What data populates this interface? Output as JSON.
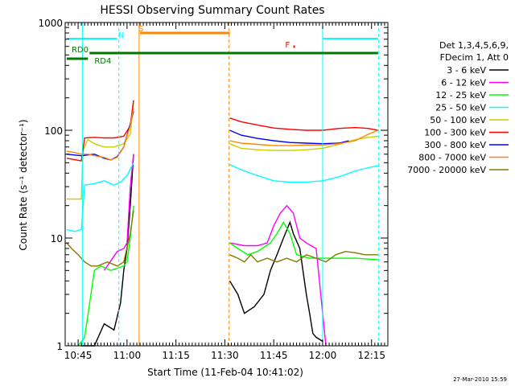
{
  "chart_data": {
    "type": "line",
    "title": "HESSI Observing Summary Count Rates",
    "xlabel": "Start Time (11-Feb-04 10:41:02)",
    "ylabel": "Count Rate (s⁻¹ detector⁻¹)",
    "x_range_min": [
      41.03,
      140.0
    ],
    "ylim": [
      1,
      1000
    ],
    "yscale": "log",
    "x_ticks": [
      {
        "v": 45,
        "label": "10:45"
      },
      {
        "v": 60,
        "label": "11:00"
      },
      {
        "v": 75,
        "label": "11:15"
      },
      {
        "v": 90,
        "label": "11:30"
      },
      {
        "v": 105,
        "label": "11:45"
      },
      {
        "v": 120,
        "label": "12:00"
      },
      {
        "v": 135,
        "label": "12:15"
      }
    ],
    "y_ticks": [
      {
        "v": 1,
        "label": "1"
      },
      {
        "v": 10,
        "label": "10"
      },
      {
        "v": 100,
        "label": "100"
      },
      {
        "v": 1000,
        "label": "1000"
      }
    ],
    "legend_header": [
      "Det 1,3,4,5,6,9,",
      "FDecim 1, Att 0"
    ],
    "legend_position": "right",
    "series": [
      {
        "name": "3 - 6 keV",
        "color": "#000000",
        "segments": [
          [
            [
              46,
              1.0
            ],
            [
              50,
              1.0
            ],
            [
              53,
              1.6
            ],
            [
              56,
              1.4
            ],
            [
              58,
              2.5
            ],
            [
              59,
              5
            ],
            [
              60,
              8
            ],
            [
              61,
              20
            ],
            [
              62,
              60
            ]
          ],
          [
            [
              91.5,
              4
            ],
            [
              94,
              3
            ],
            [
              96,
              2
            ],
            [
              99,
              2.3
            ],
            [
              102,
              3
            ],
            [
              104,
              5
            ],
            [
              106,
              7
            ],
            [
              108,
              10
            ],
            [
              110,
              14
            ],
            [
              111,
              11
            ],
            [
              113,
              8
            ],
            [
              115,
              3
            ],
            [
              116,
              2
            ],
            [
              117,
              1.3
            ],
            [
              118,
              1.2
            ],
            [
              120,
              1.1
            ]
          ]
        ]
      },
      {
        "name": "6 - 12 keV",
        "color": "#ff00ff",
        "segments": [
          [
            [
              53,
              5
            ],
            [
              57,
              7.5
            ],
            [
              59,
              8
            ],
            [
              60,
              9
            ],
            [
              61,
              30
            ],
            [
              62,
              60
            ]
          ],
          [
            [
              91.5,
              9
            ],
            [
              96,
              8.5
            ],
            [
              100,
              8.5
            ],
            [
              103,
              9
            ],
            [
              105,
              13
            ],
            [
              107,
              17
            ],
            [
              109,
              20
            ],
            [
              111,
              17
            ],
            [
              113,
              10
            ],
            [
              115,
              9
            ],
            [
              118,
              8
            ],
            [
              121,
              1
            ]
          ]
        ]
      },
      {
        "name": "12 - 25 keV",
        "color": "#00ff00",
        "segments": [
          [
            [
              45,
              1
            ],
            [
              47,
              1.2
            ],
            [
              50,
              5
            ],
            [
              52,
              5.5
            ],
            [
              55,
              5
            ],
            [
              59,
              5.5
            ],
            [
              60,
              6
            ],
            [
              61,
              10
            ],
            [
              62,
              20
            ]
          ],
          [
            [
              91.5,
              9
            ],
            [
              94,
              8
            ],
            [
              97,
              7
            ],
            [
              100,
              7.5
            ],
            [
              104,
              9
            ],
            [
              106,
              11
            ],
            [
              108,
              14
            ],
            [
              110,
              11
            ],
            [
              112,
              7
            ],
            [
              116,
              6.5
            ],
            [
              120,
              6.5
            ],
            [
              125,
              6.5
            ],
            [
              130,
              6.5
            ],
            [
              137,
              6.3
            ]
          ]
        ]
      },
      {
        "name": "25 - 50 keV",
        "color": "#00ffff",
        "segments": [
          [
            [
              41.5,
              12
            ],
            [
              44,
              11.5
            ],
            [
              46,
              12
            ],
            [
              47,
              31
            ],
            [
              50,
              32
            ],
            [
              53,
              34
            ],
            [
              56,
              31
            ],
            [
              58,
              33
            ],
            [
              60,
              38
            ],
            [
              62,
              50
            ]
          ],
          [
            [
              91.5,
              48
            ],
            [
              95,
              43
            ],
            [
              100,
              38
            ],
            [
              105,
              34
            ],
            [
              110,
              33
            ],
            [
              115,
              33
            ],
            [
              120,
              34
            ],
            [
              125,
              37
            ],
            [
              130,
              42
            ],
            [
              134,
              45
            ],
            [
              137,
              47
            ]
          ]
        ]
      },
      {
        "name": "50 - 100 keV",
        "color": "#cccc00",
        "segments": [
          [
            [
              41.5,
              23
            ],
            [
              46,
              23
            ],
            [
              46.5,
              65
            ],
            [
              48,
              82
            ],
            [
              50,
              75
            ],
            [
              53,
              70
            ],
            [
              56,
              70
            ],
            [
              59,
              75
            ],
            [
              61,
              92
            ],
            [
              62,
              180
            ]
          ],
          [
            [
              91.5,
              75
            ],
            [
              95,
              68
            ],
            [
              100,
              66
            ],
            [
              105,
              65
            ],
            [
              110,
              65
            ],
            [
              115,
              66
            ],
            [
              120,
              68
            ],
            [
              125,
              74
            ],
            [
              130,
              82
            ],
            [
              134,
              86
            ],
            [
              137,
              88
            ]
          ]
        ]
      },
      {
        "name": "100 - 300 keV",
        "color": "#ff0000",
        "segments": [
          [
            [
              41.5,
              55
            ],
            [
              46,
              52
            ],
            [
              47,
              85
            ],
            [
              50,
              86
            ],
            [
              53,
              85
            ],
            [
              56,
              85
            ],
            [
              59,
              88
            ],
            [
              61,
              110
            ],
            [
              62,
              190
            ]
          ],
          [
            [
              91.5,
              130
            ],
            [
              95,
              120
            ],
            [
              100,
              112
            ],
            [
              105,
              105
            ],
            [
              110,
              102
            ],
            [
              115,
              100
            ],
            [
              120,
              100
            ],
            [
              125,
              104
            ],
            [
              130,
              106
            ],
            [
              134,
              104
            ],
            [
              137,
              100
            ]
          ]
        ]
      },
      {
        "name": "300 - 800 keV",
        "color": "#0000ff",
        "segments": [
          [
            [
              41.5,
              60
            ],
            [
              46,
              58
            ],
            [
              50,
              60
            ],
            [
              53,
              55
            ],
            [
              55,
              53
            ],
            [
              57,
              57
            ],
            [
              59,
              70
            ],
            [
              61,
              115
            ],
            [
              62,
              150
            ]
          ],
          [
            [
              91.5,
              100
            ],
            [
              95,
              90
            ],
            [
              100,
              84
            ],
            [
              105,
              80
            ],
            [
              110,
              77
            ],
            [
              115,
              76
            ],
            [
              120,
              75
            ],
            [
              125,
              76
            ],
            [
              128,
              80
            ]
          ]
        ]
      },
      {
        "name": "800 - 7000 keV",
        "color": "#ff8800",
        "segments": [
          [
            [
              41.5,
              64
            ],
            [
              44,
              62
            ],
            [
              46,
              60
            ],
            [
              48,
              60
            ],
            [
              50,
              58
            ],
            [
              53,
              56
            ],
            [
              55,
              53
            ],
            [
              57,
              56
            ],
            [
              59,
              70
            ],
            [
              61,
              110
            ],
            [
              62,
              160
            ]
          ],
          [
            [
              91.5,
              80
            ],
            [
              95,
              76
            ],
            [
              100,
              74
            ],
            [
              105,
              72
            ],
            [
              110,
              72
            ],
            [
              115,
              73
            ],
            [
              120,
              73
            ],
            [
              125,
              75
            ],
            [
              130,
              80
            ],
            [
              134,
              92
            ],
            [
              137,
              100
            ]
          ]
        ]
      },
      {
        "name": "7000 - 20000 keV",
        "color": "#887700",
        "segments": [
          [
            [
              41.5,
              9
            ],
            [
              43,
              8
            ],
            [
              45,
              7
            ],
            [
              47,
              6
            ],
            [
              49,
              5.5
            ],
            [
              51,
              5.5
            ],
            [
              54,
              6
            ],
            [
              57,
              5.5
            ],
            [
              59,
              6
            ],
            [
              61,
              11
            ],
            [
              62,
              18
            ]
          ],
          [
            [
              91.5,
              7
            ],
            [
              94,
              6.5
            ],
            [
              96,
              6
            ],
            [
              98,
              7
            ],
            [
              100,
              6
            ],
            [
              103,
              6.5
            ],
            [
              106,
              6
            ],
            [
              109,
              6.5
            ],
            [
              112,
              6
            ],
            [
              115,
              7
            ],
            [
              118,
              6.5
            ],
            [
              121,
              6
            ],
            [
              124,
              7
            ],
            [
              127,
              7.5
            ],
            [
              130,
              7.3
            ],
            [
              133,
              7
            ],
            [
              137,
              7
            ]
          ]
        ]
      }
    ],
    "overlay_bars": [
      {
        "label": "RD0",
        "color": "#007700",
        "x1": 48.5,
        "x2": 137,
        "label_x": 43
      },
      {
        "label": "RD4",
        "color": "#007700",
        "x1": 41.5,
        "x2": 48,
        "label_x": 50
      },
      {
        "label": "S",
        "color": "#ff8800",
        "x1": 64,
        "x2": 91.5
      },
      {
        "label": "N",
        "color": "#00ffff",
        "x1": 41.5,
        "x2": 57
      },
      {
        "label": "",
        "color": "#00ffff",
        "x1": 120,
        "x2": 137
      },
      {
        "label": "F",
        "color": "#ff0000",
        "x1": 111,
        "x2": 111.5,
        "label_x": 108.5
      }
    ],
    "vlines": [
      {
        "x": 46.3,
        "color": "#00ffff",
        "dash": false
      },
      {
        "x": 57.5,
        "color": "#00ffff",
        "dash": true
      },
      {
        "x": 63.7,
        "color": "#ff8800",
        "dash": false
      },
      {
        "x": 91.3,
        "color": "#ff8800",
        "dash": true
      },
      {
        "x": 120.0,
        "color": "#00ffff",
        "dash": false
      },
      {
        "x": 137.2,
        "color": "#00ffff",
        "dash": true
      }
    ],
    "grid": false
  },
  "footer": {
    "timestamp": "27-Mar-2010 15:59"
  }
}
